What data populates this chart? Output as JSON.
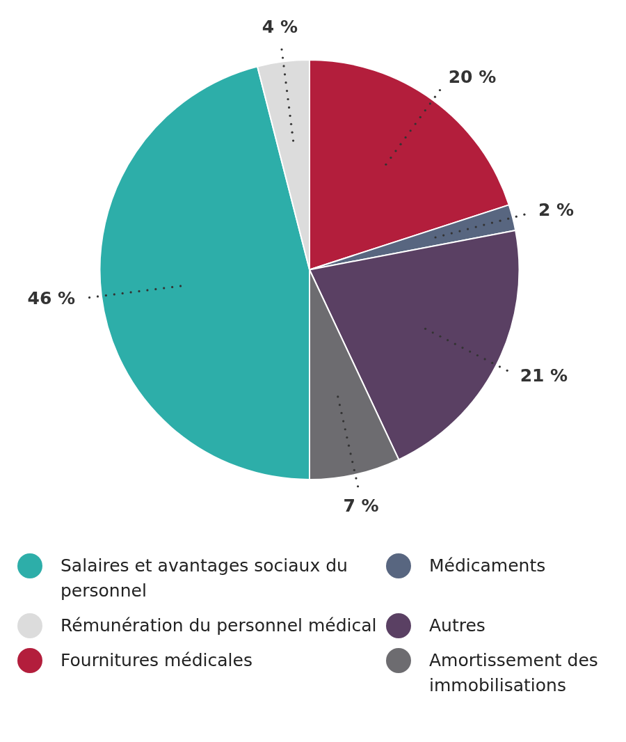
{
  "chart_data": {
    "type": "pie",
    "categories": [
      "Salaires et avantages sociaux du personnel",
      "Rémunération du personnel médical",
      "Fournitures médicales",
      "Médicaments",
      "Autres",
      "Amortissement des immobilisations"
    ],
    "values": [
      46,
      4,
      20,
      2,
      21,
      7
    ],
    "colors": [
      "#2daea9",
      "#dcdcdc",
      "#b31e3c",
      "#586680",
      "#5a4063",
      "#6d6c70"
    ],
    "value_labels": [
      "46 %",
      "4 %",
      "20 %",
      "2 %",
      "21 %",
      "7 %"
    ],
    "legend": "bottom"
  }
}
